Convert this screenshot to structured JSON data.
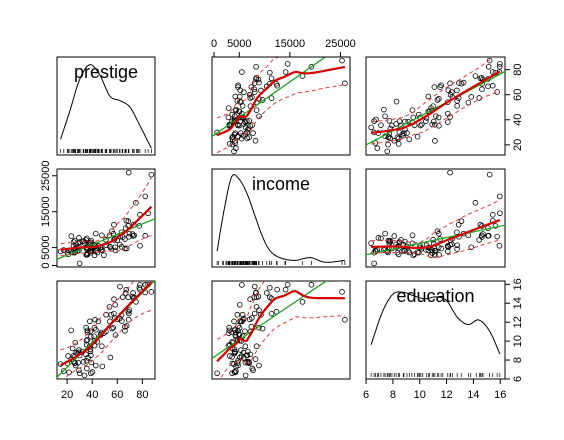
{
  "chart_data": {
    "type": "scatter",
    "variables": [
      "prestige",
      "income",
      "education"
    ],
    "ranges": {
      "prestige": [
        14.8,
        87.2
      ],
      "income": [
        611,
        25879
      ],
      "education": [
        6.38,
        15.97
      ]
    },
    "ticks": {
      "prestige": {
        "values": [
          20,
          40,
          60,
          80
        ],
        "labels": [
          "20",
          "40",
          "60",
          "80"
        ]
      },
      "income": {
        "values": [
          0,
          5000,
          15000,
          25000
        ],
        "labels": [
          "0",
          "5000",
          "15000",
          "25000"
        ]
      },
      "education": {
        "values": [
          6,
          8,
          10,
          12,
          14,
          16
        ],
        "labels": [
          "6",
          "8",
          "10",
          "12",
          "14",
          "16"
        ]
      }
    },
    "diagonal": {
      "prestige": {
        "label": "prestige",
        "density_x": [
          14.8,
          22,
          30,
          38,
          46,
          54,
          62,
          70,
          78,
          87.2
        ],
        "density_y": [
          0.15,
          0.45,
          0.8,
          0.96,
          0.85,
          0.62,
          0.57,
          0.5,
          0.3,
          0.05
        ],
        "rug": [
          14.8,
          17.3,
          20.2,
          20.8,
          21.5,
          23.2,
          23.3,
          24.4,
          25.1,
          25.2,
          25.9,
          26.1,
          26.5,
          26.8,
          28.2,
          28.8,
          29.4,
          29.9,
          30.9,
          32.8,
          33.1,
          33.3,
          34.5,
          34.9,
          35.2,
          35.9,
          36.1,
          36.2,
          37.6,
          38.1,
          38.5,
          38.9,
          39.2,
          40.2,
          41.1,
          41.5,
          41.8,
          42.3,
          42.8,
          43.1,
          44.1,
          44.9,
          45.2,
          46.1,
          47.3,
          47.7,
          48.1,
          50.3,
          51.1,
          51.6,
          53.8,
          54.1,
          54.5,
          55.1,
          56.8,
          57.4,
          58.3,
          59.6,
          60.0,
          61.7,
          62.2,
          63.9,
          64.4,
          66.1,
          66.7,
          67.2,
          68.8,
          69.1,
          69.3,
          72.1,
          72.6,
          73.5,
          75.3,
          76.2,
          77.1,
          78.1,
          82.3,
          84.6,
          87.2
        ]
      },
      "income": {
        "label": "income",
        "density_x": [
          611,
          2000,
          3500,
          5000,
          6500,
          8000,
          9500,
          11000,
          13000,
          16000,
          19000,
          22000,
          25879
        ],
        "density_y": [
          0.15,
          0.6,
          0.96,
          0.93,
          0.78,
          0.55,
          0.32,
          0.16,
          0.08,
          0.05,
          0.08,
          0.03,
          0.05
        ],
        "rug": [
          611,
          918,
          1656,
          1890,
          2370,
          2448,
          2594,
          2847,
          2901,
          3000,
          3116,
          3148,
          3161,
          3485,
          3582,
          3643,
          3739,
          3942,
          4036,
          4075,
          4199,
          4330,
          4549,
          4614,
          4686,
          4741,
          4753,
          4761,
          5052,
          5134,
          5180,
          5299,
          5449,
          5511,
          5648,
          5795,
          5811,
          5902,
          6112,
          6197,
          6259,
          6336,
          6462,
          6565,
          6686,
          6860,
          6928,
          7059,
          7147,
          7482,
          7562,
          7716,
          7869,
          7956,
          8034,
          8206,
          8258,
          8316,
          8425,
          8780,
          8895,
          9593,
          10432,
          11000,
          11030,
          11377,
          12351,
          12480,
          14032,
          14163,
          17498,
          19263,
          25308,
          25879
        ]
      },
      "education": {
        "label": "education",
        "density_x": [
          6.38,
          7.2,
          8.0,
          8.8,
          9.6,
          10.4,
          11.2,
          12.0,
          12.8,
          13.6,
          14.4,
          15.2,
          15.97
        ],
        "density_y": [
          0.35,
          0.7,
          0.9,
          0.92,
          0.88,
          0.85,
          0.87,
          0.83,
          0.65,
          0.57,
          0.62,
          0.5,
          0.25
        ],
        "rug": [
          6.38,
          6.6,
          6.69,
          6.84,
          6.92,
          7.11,
          7.33,
          7.42,
          7.58,
          7.64,
          7.76,
          7.81,
          7.93,
          8.1,
          8.24,
          8.43,
          8.5,
          8.78,
          8.82,
          9.05,
          9.22,
          9.41,
          9.62,
          9.84,
          9.93,
          10.0,
          10.09,
          10.23,
          10.51,
          10.64,
          10.73,
          10.93,
          11.02,
          11.13,
          11.32,
          11.42,
          11.59,
          11.72,
          12.09,
          12.26,
          12.3,
          12.43,
          12.79,
          13.09,
          13.62,
          13.8,
          14.21,
          14.44,
          14.52,
          14.64,
          14.71,
          15.21,
          15.44,
          15.77,
          15.97
        ]
      }
    },
    "points": {
      "prestige": [
        68.8,
        69.1,
        63.4,
        56.8,
        73.5,
        77.6,
        72.6,
        78.1,
        73.1,
        68.8,
        62.0,
        60.0,
        53.8,
        62.2,
        74.9,
        55.1,
        82.3,
        58.1,
        58.3,
        72.1,
        78.1,
        69.3,
        67.5,
        66.1,
        87.2,
        66.7,
        82.3,
        67.2,
        84.6,
        57.3,
        57.4,
        64.4,
        69.7,
        54.1,
        51.1,
        55.8,
        66.1,
        41.8,
        58.6,
        63.6,
        38.5,
        35.6,
        23.2,
        35.2,
        26.5,
        42.9,
        42.2,
        38.1,
        47.3,
        41.5,
        36.2,
        20.8,
        38.9,
        36.1,
        49.3,
        44.1,
        50.9,
        46.6,
        29.4,
        30.0,
        37.9,
        46.8,
        41.9,
        36.2,
        44.9,
        24.4,
        35.4,
        28.2,
        33.1,
        29.3,
        41.8,
        38.9,
        36.7,
        20.2,
        25.9,
        26.3,
        29.4,
        25.2,
        26.8,
        21.5,
        14.8,
        17.3,
        23.3,
        28.8,
        27.3,
        25.0,
        26.1,
        33.9,
        35.7,
        42.8,
        35.0,
        39.2,
        47.7,
        38.5,
        35.4,
        32.2,
        38.6,
        48.1,
        54.5,
        38.9,
        40.2,
        29.9
      ],
      "income": [
        12351,
        25879,
        9271,
        8865,
        8403,
        11030,
        8258,
        14163,
        11377,
        11023,
        5902,
        7059,
        8425,
        8049,
        17498,
        4614,
        19263,
        7482,
        5092,
        8780,
        5511,
        8034,
        4761,
        4739,
        25308,
        10432,
        8316,
        12480,
        14558,
        11377,
        7147,
        7956,
        8895,
        5299,
        5648,
        9593,
        7384,
        5052,
        4199,
        5180,
        6112,
        3148,
        4137,
        3000,
        3739,
        4075,
        5795,
        3960,
        4330,
        5648,
        3485,
        3116,
        4350,
        3016,
        2901,
        3582,
        7200,
        5050,
        5299,
        6565,
        6197,
        4942,
        2847,
        4686,
        5511,
        3643,
        5052,
        4036,
        6860,
        4199,
        5449,
        6462,
        5902,
        3643,
        3582,
        4687,
        7716,
        6565,
        4741,
        4199,
        3942,
        4330,
        8206,
        6197,
        5811,
        5449,
        6928,
        6250,
        7562,
        8895,
        7147,
        6936,
        8425,
        4036,
        4753,
        6686,
        4075,
        4330,
        5134,
        3582,
        4036,
        611
      ],
      "education": [
        13.11,
        12.26,
        12.77,
        11.42,
        14.62,
        15.64,
        15.09,
        15.44,
        14.52,
        14.64,
        12.39,
        12.3,
        13.62,
        15.77,
        14.15,
        12.79,
        15.96,
        12.44,
        13.84,
        14.71,
        15.94,
        12.92,
        11.6,
        11.09,
        15.21,
        15.09,
        15.14,
        15.44,
        15.97,
        12.9,
        14.43,
        14.64,
        13.27,
        12.09,
        12.79,
        11.32,
        11.52,
        11.41,
        10.64,
        12.13,
        11.04,
        9.62,
        11.13,
        11.43,
        9.84,
        11.2,
        12.26,
        12.09,
        10.91,
        10.51,
        10.93,
        8.43,
        10.46,
        11.13,
        10.84,
        9.93,
        11.0,
        10.64,
        9.05,
        8.48,
        9.46,
        10.73,
        9.52,
        10.15,
        12.09,
        9.22,
        10.05,
        8.69,
        7.81,
        8.82,
        10.02,
        8.5,
        8.24,
        7.64,
        8.33,
        7.69,
        6.92,
        7.81,
        7.42,
        6.69,
        7.58,
        6.84,
        8.1,
        7.73,
        8.78,
        8.43,
        7.66,
        6.38,
        7.11,
        7.42,
        8.6,
        7.74,
        9.46,
        9.14,
        7.93,
        8.9,
        8.9,
        7.33,
        8.27,
        6.6,
        6.74,
        6.6
      ]
    },
    "style": {
      "point_color": "#000000",
      "fit_color": "#d40000",
      "band_color": "#e53935",
      "linear_color": "#1aa31a",
      "line_color": "#000000"
    }
  }
}
